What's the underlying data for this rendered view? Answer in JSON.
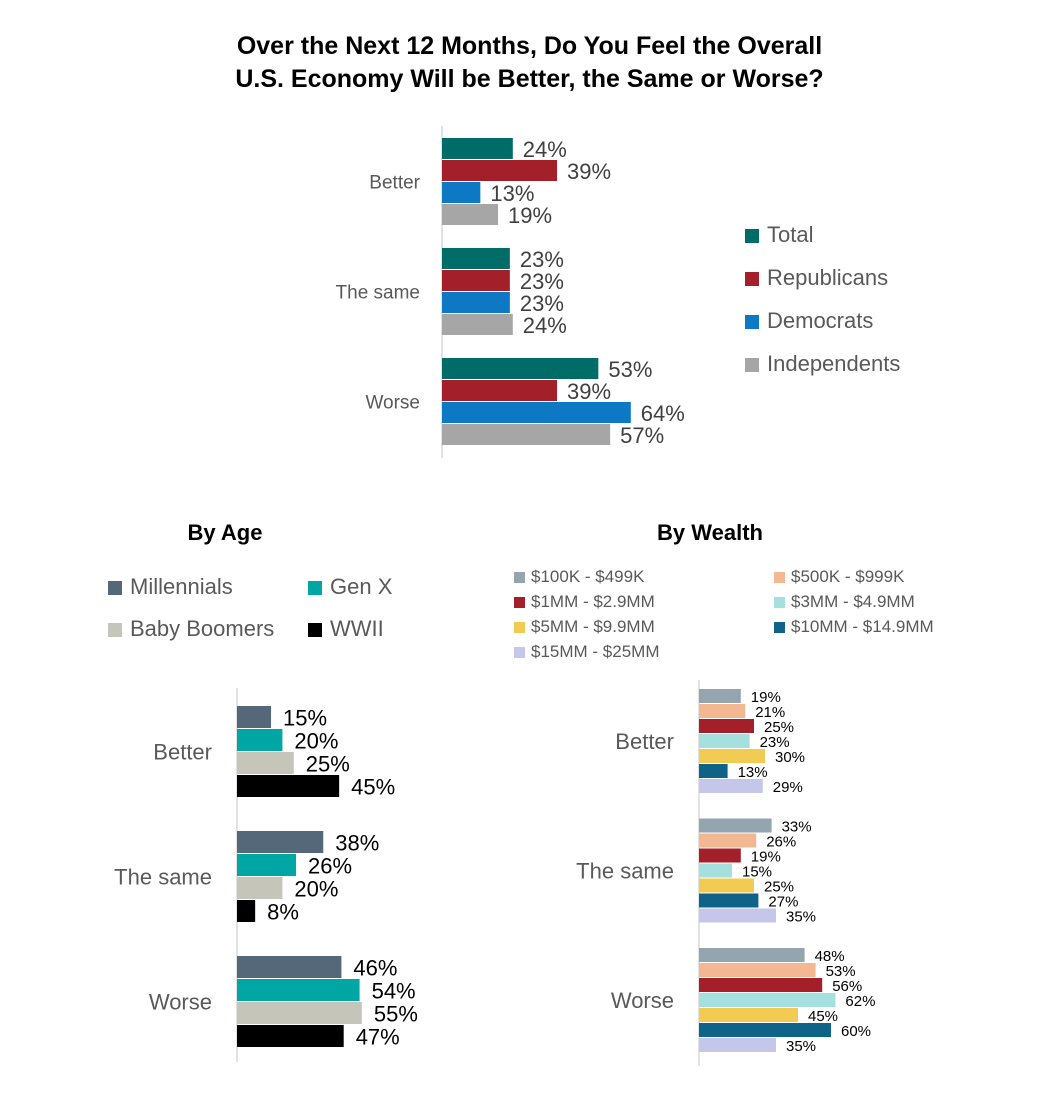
{
  "title": {
    "line1": "Over the Next 12 Months, Do You Feel the Overall",
    "line2": "U.S. Economy Will be Better, the Same or Worse?"
  },
  "subtitles": {
    "age": "By Age",
    "wealth": "By Wealth"
  },
  "chart_data": [
    {
      "type": "bar",
      "orientation": "horizontal",
      "categories": [
        "Better",
        "The same",
        "Worse"
      ],
      "series": [
        {
          "name": "Total",
          "color": "#006c67",
          "values": [
            24,
            23,
            53
          ]
        },
        {
          "name": "Republicans",
          "color": "#a3202a",
          "values": [
            39,
            23,
            39
          ]
        },
        {
          "name": "Democrats",
          "color": "#0d78c3",
          "values": [
            13,
            23,
            64
          ]
        },
        {
          "name": "Independents",
          "color": "#a6a6a6",
          "values": [
            19,
            24,
            57
          ]
        }
      ],
      "value_suffix": "%",
      "legend_position": "right"
    },
    {
      "type": "bar",
      "orientation": "horizontal",
      "title": "By Age",
      "categories": [
        "Better",
        "The same",
        "Worse"
      ],
      "series": [
        {
          "name": "Millennials",
          "color": "#546879",
          "values": [
            15,
            38,
            46
          ]
        },
        {
          "name": "Gen X",
          "color": "#00a6a4",
          "values": [
            20,
            26,
            54
          ]
        },
        {
          "name": "Baby Boomers",
          "color": "#c6c5b9",
          "values": [
            25,
            20,
            55
          ]
        },
        {
          "name": "WWII",
          "color": "#000000",
          "values": [
            45,
            8,
            47
          ]
        }
      ],
      "value_suffix": "%",
      "legend_position": "top"
    },
    {
      "type": "bar",
      "orientation": "horizontal",
      "title": "By Wealth",
      "categories": [
        "Better",
        "The same",
        "Worse"
      ],
      "series": [
        {
          "name": "$100K - $499K",
          "color": "#95a5b0",
          "values": [
            19,
            33,
            48
          ]
        },
        {
          "name": "$500K - $999K",
          "color": "#f3b891",
          "values": [
            21,
            26,
            53
          ]
        },
        {
          "name": "$1MM - $2.9MM",
          "color": "#a3202a",
          "values": [
            25,
            19,
            56
          ]
        },
        {
          "name": "$3MM - $4.9MM",
          "color": "#a5e0df",
          "values": [
            23,
            15,
            62
          ]
        },
        {
          "name": "$5MM - $9.9MM",
          "color": "#f2cc52",
          "values": [
            30,
            25,
            45
          ]
        },
        {
          "name": "$10MM - $14.9MM",
          "color": "#0f6388",
          "values": [
            13,
            27,
            60
          ]
        },
        {
          "name": "$15MM - $25MM",
          "color": "#c5c7ea",
          "values": [
            29,
            35,
            35
          ]
        }
      ],
      "value_suffix": "%",
      "legend_position": "top"
    }
  ]
}
